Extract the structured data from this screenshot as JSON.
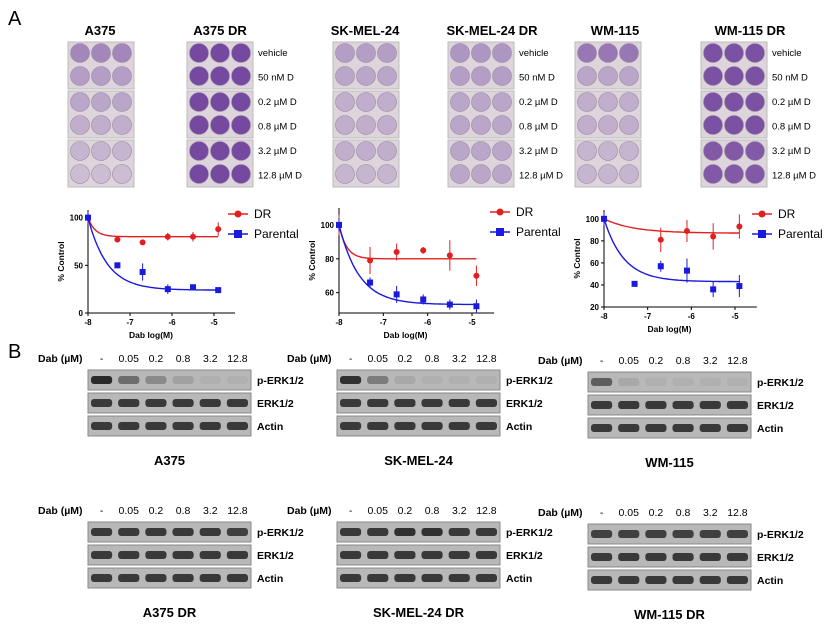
{
  "panel_labels": [
    "A",
    "B"
  ],
  "cell_lines": [
    "A375",
    "A375 DR",
    "SK-MEL-24",
    "SK-MEL-24 DR",
    "WM-115",
    "WM-115 DR"
  ],
  "plate_treatments": [
    "vehicle",
    "50 nM D",
    "0.2 µM D",
    "0.8 µM D",
    "3.2 µM D",
    "12.8 µM D"
  ],
  "plate_stain_intensity": {
    "A375": [
      0.5,
      0.35,
      0.3,
      0.25,
      0.2,
      0.15
    ],
    "A375 DR": [
      0.9,
      0.9,
      0.9,
      0.9,
      0.9,
      0.9
    ],
    "SK-MEL-24": [
      0.35,
      0.3,
      0.25,
      0.25,
      0.25,
      0.2
    ],
    "SK-MEL-24 DR": [
      0.4,
      0.35,
      0.3,
      0.3,
      0.3,
      0.3
    ],
    "WM-115": [
      0.6,
      0.3,
      0.25,
      0.25,
      0.2,
      0.2
    ],
    "WM-115 DR": [
      0.85,
      0.85,
      0.85,
      0.85,
      0.8,
      0.8
    ]
  },
  "colors": {
    "dr": "#e02020",
    "parental": "#1a1adc",
    "stain": "#6a3a9a"
  },
  "chart_data": [
    {
      "type": "line",
      "xlabel": "Dab log(M)",
      "ylabel": "% Control",
      "x": [
        -8,
        -7.3,
        -6.7,
        -6.1,
        -5.5,
        -4.9
      ],
      "xticks": [
        "-8",
        "-7",
        "-6",
        "-5"
      ],
      "xlim": [
        -8,
        -4.5
      ],
      "ylim": [
        0,
        108
      ],
      "yticks": [
        "0",
        "50",
        "100"
      ],
      "legend": "right",
      "series": [
        {
          "name": "DR",
          "values": [
            100,
            77,
            74,
            80,
            80,
            88
          ],
          "err": [
            6,
            2,
            1,
            4,
            5,
            7
          ],
          "plateau": 80
        },
        {
          "name": "Parental",
          "values": [
            100,
            50,
            43,
            25,
            27,
            24
          ],
          "err": [
            6,
            3,
            9,
            5,
            1,
            1
          ],
          "plateau": 24
        }
      ]
    },
    {
      "type": "line",
      "xlabel": "Dab log(M)",
      "ylabel": "% Control",
      "x": [
        -8,
        -7.3,
        -6.7,
        -6.1,
        -5.5,
        -4.9
      ],
      "xticks": [
        "-8",
        "-7",
        "-6",
        "-5"
      ],
      "xlim": [
        -8,
        -4.5
      ],
      "ylim": [
        48,
        110
      ],
      "yticks": [
        "60",
        "80",
        "100"
      ],
      "legend": "right",
      "series": [
        {
          "name": "DR",
          "values": [
            100,
            79,
            84,
            85,
            82,
            70
          ],
          "err": [
            6,
            8,
            5,
            2,
            9,
            6
          ],
          "plateau": 80
        },
        {
          "name": "Parental",
          "values": [
            100,
            66,
            59,
            56,
            53,
            52
          ],
          "err": [
            4,
            3,
            5,
            3,
            3,
            4
          ],
          "plateau": 53
        }
      ]
    },
    {
      "type": "line",
      "xlabel": "Dab log(M)",
      "ylabel": "% Control",
      "x": [
        -8,
        -7.3,
        -6.7,
        -6.1,
        -5.5,
        -4.9
      ],
      "xticks": [
        "-8",
        "-7",
        "-6",
        "-5"
      ],
      "xlim": [
        -8,
        -4.5
      ],
      "ylim": [
        20,
        108
      ],
      "yticks": [
        "20",
        "40",
        "60",
        "80",
        "100"
      ],
      "legend": "right",
      "series": [
        {
          "name": "DR",
          "values": [
            100,
            null,
            81,
            89,
            84,
            93
          ],
          "err": [
            6,
            0,
            11,
            10,
            12,
            11
          ],
          "plateau": 87
        },
        {
          "name": "Parental",
          "values": [
            100,
            41,
            57,
            53,
            36,
            39
          ],
          "err": [
            6,
            0,
            5,
            11,
            7,
            10
          ],
          "plateau": 43
        }
      ]
    }
  ],
  "blot": {
    "dose_header": "Dab (µM)",
    "doses": [
      "-",
      "0.05",
      "0.2",
      "0.8",
      "3.2",
      "12.8"
    ],
    "proteins": [
      "p-ERK1/2",
      "ERK1/2",
      "Actin"
    ],
    "panels": [
      {
        "name": "A375",
        "perk": [
          0.95,
          0.5,
          0.3,
          0.15,
          0.05,
          0.05
        ]
      },
      {
        "name": "SK-MEL-24",
        "perk": [
          0.9,
          0.4,
          0.1,
          0.05,
          0.05,
          0.05
        ]
      },
      {
        "name": "WM-115",
        "perk": [
          0.6,
          0.1,
          0.05,
          0.05,
          0.05,
          0.05
        ]
      },
      {
        "name": "A375 DR",
        "perk": [
          0.85,
          0.85,
          0.85,
          0.85,
          0.85,
          0.8
        ]
      },
      {
        "name": "SK-MEL-24 DR",
        "perk": [
          0.85,
          0.85,
          0.9,
          0.9,
          0.85,
          0.85
        ]
      },
      {
        "name": "WM-115 DR",
        "perk": [
          0.8,
          0.8,
          0.8,
          0.8,
          0.8,
          0.8
        ]
      }
    ]
  }
}
